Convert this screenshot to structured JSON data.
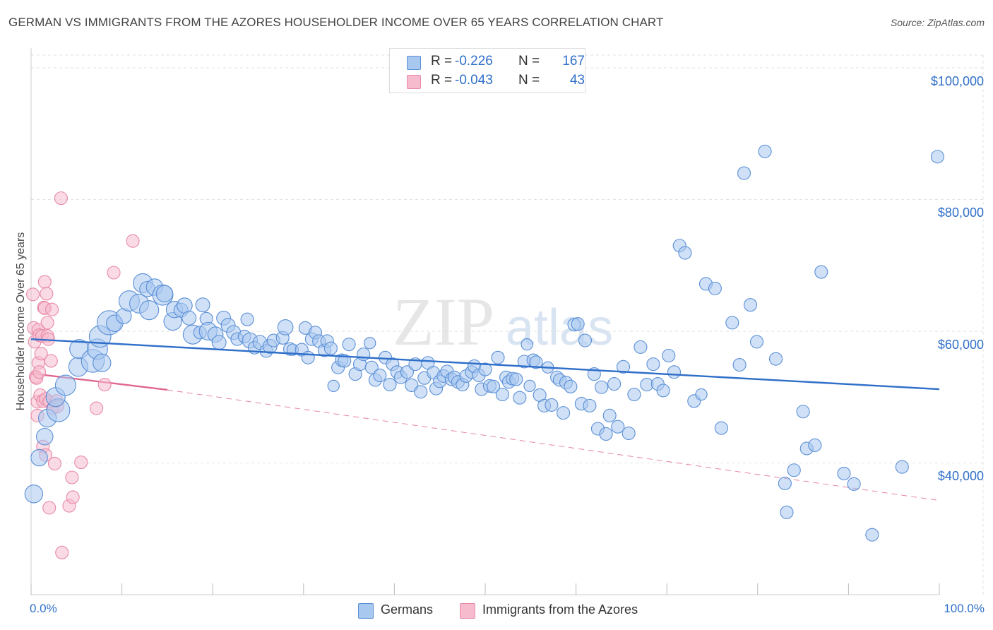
{
  "title": "GERMAN VS IMMIGRANTS FROM THE AZORES HOUSEHOLDER INCOME OVER 65 YEARS CORRELATION CHART",
  "source": "Source: ZipAtlas.com",
  "watermark": {
    "zip": "ZIP",
    "atlas": "atlas"
  },
  "legend_top": {
    "r_label": "R =",
    "n_label": "N =",
    "rows": [
      {
        "r": "-0.226",
        "n": "167"
      },
      {
        "r": "-0.043",
        "n": "43"
      }
    ]
  },
  "legend_bottom": [
    "Germans",
    "Immigrants from the Azores"
  ],
  "colors": {
    "blue_fill": "#a9c8f0",
    "blue_stroke": "#5a8fd6",
    "blue_line": "#2f6fc9",
    "pink_fill": "#f6bccd",
    "pink_stroke": "#e889a6",
    "pink_line": "#e0668f",
    "axis_text": "#2f6fc9",
    "grid": "#e2e2e2"
  },
  "chart_data": {
    "type": "scatter",
    "title": "GERMAN VS IMMIGRANTS FROM THE AZORES HOUSEHOLDER INCOME OVER 65 YEARS CORRELATION CHART",
    "xlabel": "",
    "ylabel": "Householder Income Over 65 years",
    "xlim": [
      0,
      100
    ],
    "ylim": [
      20000,
      103000
    ],
    "x_tick_labels": [
      "0.0%",
      "100.0%"
    ],
    "y_ticks": [
      40000,
      60000,
      80000,
      100000
    ],
    "y_tick_labels": [
      "$40,000",
      "$60,000",
      "$80,000",
      "$100,000"
    ],
    "grid": true,
    "legend_position": "top-center",
    "series": [
      {
        "name": "Germans",
        "r": -0.226,
        "n": 167,
        "trend": {
          "x": [
            0,
            100
          ],
          "y": [
            58800,
            51200
          ]
        },
        "points": [
          [
            0.3,
            35300,
            1.4
          ],
          [
            0.9,
            40800,
            1.3
          ],
          [
            1.5,
            44000,
            1.3
          ],
          [
            1.8,
            46800,
            1.4
          ],
          [
            3.0,
            48000,
            1.8
          ],
          [
            2.7,
            50000,
            1.5
          ],
          [
            3.8,
            51800,
            1.6
          ],
          [
            5.2,
            54600,
            1.5
          ],
          [
            5.3,
            57300,
            1.5
          ],
          [
            6.8,
            55500,
            1.8
          ],
          [
            7.3,
            57300,
            1.6
          ],
          [
            7.8,
            55200,
            1.4
          ],
          [
            7.6,
            59200,
            1.7
          ],
          [
            8.6,
            61300,
            1.9
          ],
          [
            9.2,
            61200,
            1.3
          ],
          [
            10.2,
            62300,
            1.2
          ],
          [
            10.8,
            64600,
            1.6
          ],
          [
            11.9,
            64200,
            1.5
          ],
          [
            12.3,
            67300,
            1.5
          ],
          [
            12.8,
            66400,
            1.2
          ],
          [
            13.0,
            63200,
            1.5
          ],
          [
            13.6,
            66700,
            1.3
          ],
          [
            14.5,
            65500,
            1.6
          ],
          [
            14.7,
            65700,
            1.3
          ],
          [
            15.6,
            61500,
            1.4
          ],
          [
            15.8,
            63300,
            1.3
          ],
          [
            16.5,
            63200,
            1.1
          ],
          [
            16.9,
            63900,
            1.2
          ],
          [
            17.4,
            62000,
            1.1
          ],
          [
            17.8,
            59500,
            1.5
          ],
          [
            18.6,
            59800,
            1.0
          ],
          [
            18.9,
            64000,
            1.1
          ],
          [
            19.3,
            61900,
            1.0
          ],
          [
            19.5,
            60000,
            1.4
          ],
          [
            20.3,
            59500,
            1.2
          ],
          [
            20.7,
            58300,
            1.1
          ],
          [
            21.2,
            62000,
            1.1
          ],
          [
            21.7,
            60900,
            1.1
          ],
          [
            22.3,
            59800,
            1.1
          ],
          [
            22.7,
            58800,
            1.0
          ],
          [
            23.5,
            59200,
            1.0
          ],
          [
            23.8,
            61800,
            1.0
          ],
          [
            24.1,
            58600,
            1.2
          ],
          [
            24.6,
            57500,
            1.0
          ],
          [
            25.2,
            58300,
            1.1
          ],
          [
            25.9,
            57000,
            1.0
          ],
          [
            26.3,
            57700,
            1.1
          ],
          [
            26.7,
            58600,
            1.0
          ],
          [
            27.7,
            59000,
            1.0
          ],
          [
            28.0,
            60600,
            1.2
          ],
          [
            28.5,
            57300,
            1.0
          ],
          [
            28.8,
            57200,
            0.9
          ],
          [
            29.8,
            57200,
            1.0
          ],
          [
            30.2,
            60500,
            1.0
          ],
          [
            30.5,
            56000,
            1.0
          ],
          [
            30.9,
            58800,
            1.0
          ],
          [
            31.3,
            59800,
            1.0
          ],
          [
            31.7,
            58500,
            1.0
          ],
          [
            32.3,
            57100,
            1.0
          ],
          [
            32.6,
            58500,
            1.0
          ],
          [
            33.0,
            57400,
            1.0
          ],
          [
            33.3,
            51700,
            0.9
          ],
          [
            33.8,
            54500,
            1.0
          ],
          [
            34.2,
            55600,
            1.0
          ],
          [
            34.5,
            55500,
            1.0
          ],
          [
            35.0,
            58000,
            1.0
          ],
          [
            35.7,
            53500,
            1.0
          ],
          [
            36.2,
            55000,
            1.0
          ],
          [
            36.6,
            56500,
            1.0
          ],
          [
            37.3,
            58200,
            0.9
          ],
          [
            37.5,
            54500,
            1.0
          ],
          [
            37.9,
            52600,
            1.0
          ],
          [
            38.4,
            53300,
            1.0
          ],
          [
            39.0,
            56000,
            1.0
          ],
          [
            39.5,
            51900,
            1.0
          ],
          [
            39.8,
            55000,
            1.0
          ],
          [
            40.3,
            53800,
            1.0
          ],
          [
            40.7,
            53000,
            1.0
          ],
          [
            41.4,
            53800,
            1.0
          ],
          [
            41.9,
            51800,
            1.0
          ],
          [
            42.3,
            55000,
            1.0
          ],
          [
            42.9,
            50800,
            1.0
          ],
          [
            43.3,
            52900,
            1.0
          ],
          [
            43.7,
            55200,
            1.0
          ],
          [
            44.3,
            53700,
            1.0
          ],
          [
            44.6,
            51300,
            1.0
          ],
          [
            45.0,
            52400,
            1.0
          ],
          [
            45.4,
            53200,
            1.0
          ],
          [
            45.8,
            53900,
            1.0
          ],
          [
            46.3,
            52700,
            1.0
          ],
          [
            46.6,
            53000,
            1.0
          ],
          [
            47.0,
            52300,
            1.0
          ],
          [
            47.5,
            51900,
            1.0
          ],
          [
            47.9,
            53200,
            1.0
          ],
          [
            48.5,
            53800,
            1.0
          ],
          [
            48.8,
            54700,
            1.0
          ],
          [
            49.3,
            53300,
            1.0
          ],
          [
            49.6,
            51200,
            1.0
          ],
          [
            50.0,
            54200,
            1.0
          ],
          [
            50.5,
            51700,
            1.0
          ],
          [
            50.9,
            51600,
            1.0
          ],
          [
            51.4,
            56000,
            1.0
          ],
          [
            51.9,
            50400,
            1.0
          ],
          [
            52.3,
            53000,
            1.0
          ],
          [
            52.6,
            52300,
            1.0
          ],
          [
            53.0,
            52800,
            1.0
          ],
          [
            53.4,
            52700,
            1.0
          ],
          [
            53.8,
            49900,
            1.0
          ],
          [
            54.3,
            55400,
            1.0
          ],
          [
            54.6,
            58000,
            0.9
          ],
          [
            54.9,
            51700,
            0.9
          ],
          [
            55.3,
            55600,
            1.0
          ],
          [
            55.6,
            55300,
            1.0
          ],
          [
            56.0,
            50300,
            1.0
          ],
          [
            56.5,
            48700,
            1.0
          ],
          [
            56.9,
            54500,
            0.9
          ],
          [
            57.3,
            48800,
            1.0
          ],
          [
            57.9,
            53000,
            1.0
          ],
          [
            58.2,
            52600,
            1.0
          ],
          [
            58.6,
            47600,
            1.0
          ],
          [
            58.9,
            52200,
            1.0
          ],
          [
            59.4,
            51600,
            1.0
          ],
          [
            59.8,
            61000,
            1.0
          ],
          [
            60.2,
            61100,
            1.0
          ],
          [
            60.6,
            49000,
            1.0
          ],
          [
            61.0,
            58600,
            1.0
          ],
          [
            61.5,
            48700,
            1.0
          ],
          [
            62.0,
            53500,
            1.0
          ],
          [
            62.4,
            45200,
            1.0
          ],
          [
            62.8,
            51500,
            1.0
          ],
          [
            63.3,
            44400,
            1.0
          ],
          [
            63.7,
            47200,
            1.0
          ],
          [
            64.2,
            52000,
            1.0
          ],
          [
            64.6,
            45500,
            1.0
          ],
          [
            65.2,
            54600,
            1.0
          ],
          [
            65.8,
            44500,
            1.0
          ],
          [
            66.4,
            50400,
            1.0
          ],
          [
            67.1,
            57600,
            1.0
          ],
          [
            67.8,
            51900,
            1.0
          ],
          [
            68.5,
            55000,
            1.0
          ],
          [
            69.0,
            52000,
            1.0
          ],
          [
            69.6,
            51000,
            1.0
          ],
          [
            70.2,
            56300,
            1.0
          ],
          [
            70.8,
            53800,
            1.0
          ],
          [
            71.4,
            73000,
            1.0
          ],
          [
            72.0,
            71900,
            1.0
          ],
          [
            73.0,
            49400,
            1.0
          ],
          [
            73.8,
            50400,
            0.9
          ],
          [
            74.3,
            67200,
            1.0
          ],
          [
            75.3,
            66500,
            1.0
          ],
          [
            76.0,
            45300,
            1.0
          ],
          [
            77.2,
            61300,
            1.0
          ],
          [
            78.0,
            54900,
            1.0
          ],
          [
            78.5,
            84000,
            1.0
          ],
          [
            79.2,
            64000,
            1.0
          ],
          [
            79.9,
            58400,
            1.0
          ],
          [
            80.8,
            87300,
            1.0
          ],
          [
            82.0,
            55800,
            1.0
          ],
          [
            83.0,
            36900,
            1.0
          ],
          [
            83.2,
            32500,
            1.0
          ],
          [
            84.0,
            38900,
            1.0
          ],
          [
            85.0,
            47800,
            1.0
          ],
          [
            85.4,
            42200,
            1.0
          ],
          [
            86.3,
            42700,
            1.0
          ],
          [
            87.0,
            69000,
            1.0
          ],
          [
            89.5,
            38400,
            1.0
          ],
          [
            90.6,
            36800,
            1.0
          ],
          [
            92.6,
            29100,
            1.0
          ],
          [
            95.9,
            39400,
            1.0
          ],
          [
            99.8,
            86500,
            1.0
          ]
        ]
      },
      {
        "name": "Immigrants from the Azores",
        "r": -0.043,
        "n": 43,
        "trend": {
          "x": [
            0,
            15
          ],
          "y": [
            53600,
            51100
          ]
        },
        "trend_extended": {
          "x": [
            15,
            100
          ],
          "y": [
            51100,
            34300
          ]
        },
        "points": [
          [
            0.2,
            65600,
            1.0
          ],
          [
            0.3,
            60500,
            1.0
          ],
          [
            0.4,
            58400,
            1.0
          ],
          [
            0.5,
            53100,
            1.0
          ],
          [
            0.6,
            52900,
            1.0
          ],
          [
            0.7,
            49300,
            1.0
          ],
          [
            0.7,
            47200,
            1.0
          ],
          [
            0.8,
            60200,
            1.0
          ],
          [
            0.8,
            55200,
            1.0
          ],
          [
            0.9,
            59400,
            1.0
          ],
          [
            0.9,
            53800,
            1.0
          ],
          [
            1.1,
            56600,
            1.0
          ],
          [
            1.0,
            50300,
            1.0
          ],
          [
            1.2,
            59300,
            1.0
          ],
          [
            1.3,
            49400,
            1.0
          ],
          [
            1.3,
            42500,
            1.0
          ],
          [
            1.4,
            63600,
            1.0
          ],
          [
            1.5,
            67500,
            1.0
          ],
          [
            1.5,
            63500,
            1.0
          ],
          [
            1.6,
            49700,
            1.0
          ],
          [
            1.6,
            41200,
            1.0
          ],
          [
            1.7,
            65700,
            1.0
          ],
          [
            1.8,
            61300,
            1.0
          ],
          [
            1.8,
            59300,
            1.0
          ],
          [
            1.9,
            58800,
            1.0
          ],
          [
            2.0,
            49300,
            1.0
          ],
          [
            2.0,
            33200,
            1.0
          ],
          [
            2.2,
            55500,
            1.0
          ],
          [
            2.3,
            63300,
            1.0
          ],
          [
            2.4,
            48300,
            1.0
          ],
          [
            2.6,
            39900,
            1.0
          ],
          [
            2.8,
            49400,
            1.0
          ],
          [
            2.9,
            48600,
            1.0
          ],
          [
            3.3,
            80200,
            1.0
          ],
          [
            3.4,
            26400,
            1.0
          ],
          [
            4.2,
            33500,
            1.0
          ],
          [
            4.5,
            37800,
            1.0
          ],
          [
            4.6,
            34800,
            1.0
          ],
          [
            5.5,
            40100,
            1.0
          ],
          [
            7.2,
            48300,
            1.0
          ],
          [
            8.1,
            51900,
            1.0
          ],
          [
            9.1,
            68900,
            1.0
          ],
          [
            11.2,
            73700,
            1.0
          ]
        ]
      }
    ]
  }
}
